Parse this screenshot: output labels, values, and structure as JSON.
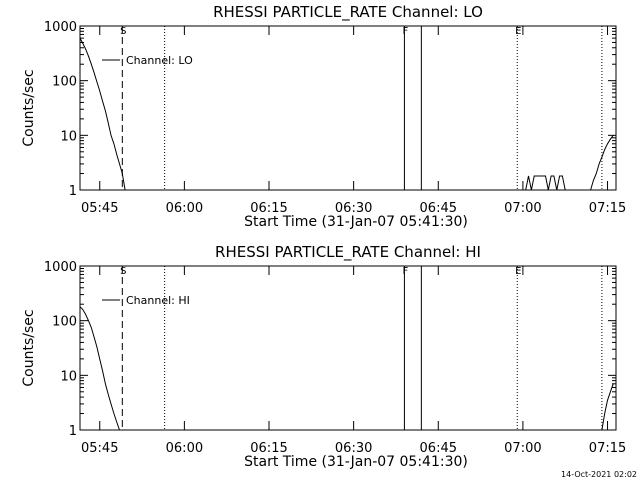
{
  "footer": {
    "timestamp": "14-Oct-2021 02:02"
  },
  "chart_data": [
    {
      "type": "line",
      "title": "RHESSI PARTICLE_RATE Channel: LO",
      "xlabel": "Start Time (31-Jan-07 05:41:30)",
      "ylabel": "Counts/sec",
      "yscale": "log",
      "xlim_minutes": [
        0.0,
        95.0
      ],
      "ylim": [
        1,
        1000
      ],
      "xticks": [
        {
          "t": 3.5,
          "label": "05:45"
        },
        {
          "t": 18.5,
          "label": "06:00"
        },
        {
          "t": 33.5,
          "label": "06:15"
        },
        {
          "t": 48.5,
          "label": "06:30"
        },
        {
          "t": 63.5,
          "label": "06:45"
        },
        {
          "t": 78.5,
          "label": "07:00"
        },
        {
          "t": 93.5,
          "label": "07:15"
        }
      ],
      "yticks": [
        {
          "v": 1,
          "label": "1"
        },
        {
          "v": 10,
          "label": "10"
        },
        {
          "v": 100,
          "label": "100"
        },
        {
          "v": 1000,
          "label": "1000"
        }
      ],
      "grid": false,
      "legend": {
        "position": "top-left",
        "entries": [
          "Channel: LO"
        ]
      },
      "series": [
        {
          "name": "Channel: LO",
          "x": [
            0.0,
            0.5,
            1.0,
            1.5,
            2.0,
            2.5,
            3.0,
            3.5,
            4.0,
            4.5,
            5.0,
            5.5,
            6.0,
            6.5,
            7.0,
            7.5,
            8.0
          ],
          "y": [
            600,
            480,
            380,
            280,
            200,
            140,
            95,
            65,
            42,
            28,
            17,
            10,
            7,
            4.5,
            3,
            2,
            1
          ]
        },
        {
          "name": "Channel: LO",
          "x": [
            79.0,
            79.5,
            80.0,
            80.5,
            81.0,
            81.5,
            82.0,
            82.5,
            83.0,
            83.5,
            84.0,
            84.5,
            85.0,
            85.5,
            86.0
          ],
          "y": [
            1,
            1.8,
            1,
            1.8,
            1.8,
            1.8,
            1.8,
            1.8,
            1,
            1.8,
            1.8,
            1,
            1.8,
            1.8,
            1
          ]
        },
        {
          "name": "Channel: LO",
          "x": [
            90.5,
            91.0,
            91.5,
            92.0,
            92.5,
            93.0,
            93.5,
            94.0,
            94.5
          ],
          "y": [
            1,
            1.5,
            2,
            3,
            4,
            5.5,
            7,
            8.5,
            10
          ]
        }
      ],
      "vertical_markers": [
        {
          "t": 7.5,
          "style": "dashed",
          "label": "S"
        },
        {
          "t": 15.0,
          "style": "dotted",
          "label": ""
        },
        {
          "t": 57.5,
          "style": "solid",
          "label": "F"
        },
        {
          "t": 60.5,
          "style": "solid",
          "label": ""
        },
        {
          "t": 77.5,
          "style": "dotted",
          "label": "E"
        },
        {
          "t": 92.5,
          "style": "dotted",
          "label": ""
        }
      ]
    },
    {
      "type": "line",
      "title": "RHESSI PARTICLE_RATE Channel: HI",
      "xlabel": "Start Time (31-Jan-07 05:41:30)",
      "ylabel": "Counts/sec",
      "yscale": "log",
      "xlim_minutes": [
        0.0,
        95.0
      ],
      "ylim": [
        1,
        1000
      ],
      "xticks": [
        {
          "t": 3.5,
          "label": "05:45"
        },
        {
          "t": 18.5,
          "label": "06:00"
        },
        {
          "t": 33.5,
          "label": "06:15"
        },
        {
          "t": 48.5,
          "label": "06:30"
        },
        {
          "t": 63.5,
          "label": "06:45"
        },
        {
          "t": 78.5,
          "label": "07:00"
        },
        {
          "t": 93.5,
          "label": "07:15"
        }
      ],
      "yticks": [
        {
          "v": 1,
          "label": "1"
        },
        {
          "v": 10,
          "label": "10"
        },
        {
          "v": 100,
          "label": "100"
        },
        {
          "v": 1000,
          "label": "1000"
        }
      ],
      "grid": false,
      "legend": {
        "position": "top-left",
        "entries": [
          "Channel: HI"
        ]
      },
      "series": [
        {
          "name": "Channel: HI",
          "x": [
            0.0,
            0.5,
            1.0,
            1.5,
            2.0,
            2.5,
            3.0,
            3.5,
            4.0,
            4.5,
            5.0,
            5.5,
            6.0,
            6.5,
            7.0
          ],
          "y": [
            180,
            160,
            130,
            100,
            75,
            50,
            33,
            20,
            12,
            7,
            4.5,
            3,
            2,
            1.4,
            1
          ]
        },
        {
          "name": "Channel: HI",
          "x": [
            92.5,
            93.0,
            93.5,
            94.0,
            94.5
          ],
          "y": [
            1,
            2,
            3.5,
            5,
            7
          ]
        }
      ],
      "vertical_markers": [
        {
          "t": 7.5,
          "style": "dashed",
          "label": "S"
        },
        {
          "t": 15.0,
          "style": "dotted",
          "label": ""
        },
        {
          "t": 57.5,
          "style": "solid",
          "label": "F"
        },
        {
          "t": 60.5,
          "style": "solid",
          "label": ""
        },
        {
          "t": 77.5,
          "style": "dotted",
          "label": "E"
        },
        {
          "t": 92.5,
          "style": "dotted",
          "label": ""
        }
      ]
    }
  ]
}
